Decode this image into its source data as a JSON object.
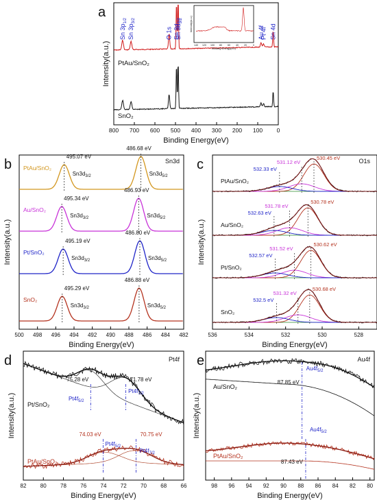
{
  "figure": {
    "colors": {
      "pt": "#1f24c8",
      "au": "#c832d8",
      "ptau": "#d2961e",
      "sno2": "#b4321e",
      "ptau_survey": "#d01818",
      "black": "#111111",
      "oo": "#2a8a2a"
    }
  },
  "chart_data": [
    {
      "panel": "a",
      "type": "line",
      "xlabel": "Binding Energy(eV)",
      "ylabel": "Intensity(a.u.)",
      "xlim": [
        800,
        0
      ],
      "xticks": [
        800,
        700,
        600,
        500,
        400,
        300,
        200,
        100,
        0
      ],
      "series": [
        {
          "name": "PtAu/SnO₂"
        },
        {
          "name": "SnO₂"
        }
      ],
      "peaks": [
        {
          "label": "Sn 3p",
          "sub": "1/2",
          "x": 757
        },
        {
          "label": "Sn 3p",
          "sub": "3/2",
          "x": 716
        },
        {
          "label": "O 1s",
          "sub": "",
          "x": 531
        },
        {
          "label": "Sn 3d",
          "sub": "3/2",
          "x": 495
        },
        {
          "label": "Sn 3d",
          "sub": "5/2",
          "x": 487
        },
        {
          "label": "Au 4f",
          "sub": "",
          "x": 84
        },
        {
          "label": "Pt 4f",
          "sub": "",
          "x": 72
        },
        {
          "label": "Sn 4d",
          "sub": "",
          "x": 25
        }
      ],
      "inset": {
        "xlabel": "Binding Energy(eV)",
        "ylabel": "Intensity(a.u.)",
        "xticks": [
          140,
          120,
          100,
          80,
          60,
          40,
          20,
          0
        ]
      }
    },
    {
      "panel": "b",
      "type": "line",
      "title": "Sn3d",
      "xlabel": "Binding Energy(eV)",
      "ylabel": "Intensity(a.u.)",
      "xlim": [
        500,
        482
      ],
      "xticks": [
        500,
        498,
        496,
        494,
        492,
        490,
        488,
        486,
        484,
        482
      ],
      "series": [
        {
          "name": "PtAu/SnO₂",
          "peaks": [
            495.07,
            486.68
          ],
          "labels": [
            "495.07 eV",
            "486.68 eV"
          ]
        },
        {
          "name": "Au/SnO₂",
          "peaks": [
            495.34,
            486.93
          ],
          "labels": [
            "495.34 eV",
            "486.93 eV"
          ]
        },
        {
          "name": "Pt/SnO₂",
          "peaks": [
            495.19,
            486.8
          ],
          "labels": [
            "495.19 eV",
            "486.80 eV"
          ]
        },
        {
          "name": "SnO₂",
          "peaks": [
            495.29,
            486.88
          ],
          "labels": [
            "495.29 eV",
            "486.88 eV"
          ]
        }
      ],
      "peak_names": [
        "Sn3d",
        "3/2",
        "Sn3d",
        "5/2"
      ]
    },
    {
      "panel": "c",
      "type": "line",
      "title": "O1s",
      "xlabel": "Binding Energy(eV)",
      "ylabel": "Intensity(a.u.)",
      "xlim": [
        536,
        527
      ],
      "xticks": [
        536,
        534,
        532,
        530,
        528
      ],
      "series": [
        {
          "name": "PtAu/SnO₂",
          "peaks": [
            530.45,
            531.12,
            532.33
          ],
          "labels": [
            "530.45 eV",
            "531.12 eV",
            "532.33 eV"
          ]
        },
        {
          "name": "Au/SnO₂",
          "peaks": [
            530.78,
            531.78,
            532.63
          ],
          "labels": [
            "530.78 eV",
            "531.78 eV",
            "532.63 eV"
          ]
        },
        {
          "name": "Pt/SnO₂",
          "peaks": [
            530.62,
            531.52,
            532.57
          ],
          "labels": [
            "530.62 eV",
            "531.52 eV",
            "532.57 eV"
          ]
        },
        {
          "name": "SnO₂",
          "peaks": [
            530.68,
            531.32,
            532.5
          ],
          "labels": [
            "530.68 eV",
            "531.32 eV",
            "532.5 eV"
          ]
        }
      ]
    },
    {
      "panel": "d",
      "type": "line",
      "title": "Pt4f",
      "xlabel": "Binding Energy(eV)",
      "ylabel": "Intensity(a.u.)",
      "xlim": [
        82,
        66
      ],
      "xticks": [
        82,
        80,
        78,
        76,
        74,
        72,
        70,
        68,
        66
      ],
      "series": [
        {
          "name": "Pt/SnO₂",
          "peaks": [
            75.28,
            71.78
          ],
          "labels": [
            "75.28 eV",
            "71.78 eV"
          ]
        },
        {
          "name": "PtAu/SnO₂",
          "peaks": [
            74.03,
            70.75
          ],
          "labels": [
            "74.03 eV",
            "70.75 eV"
          ]
        }
      ],
      "peak_names": [
        "Pt4f",
        "5/2",
        "Pt4f",
        "7/2"
      ]
    },
    {
      "panel": "e",
      "type": "line",
      "title": "Au4f",
      "xlabel": "Binding Energy(eV)",
      "ylabel": "Intensity(a.u.)",
      "xlim": [
        99,
        79.5
      ],
      "xticks": [
        98,
        96,
        94,
        92,
        90,
        88,
        86,
        84,
        82,
        80
      ],
      "series": [
        {
          "name": "Au/SnO₂",
          "peaks": [
            87.85
          ],
          "labels": [
            "87.85 eV"
          ]
        },
        {
          "name": "PtAu/SnO₂",
          "peaks": [
            87.43
          ],
          "labels": [
            "87.43 eV"
          ]
        }
      ],
      "peak_names": [
        "Au4f",
        "5/2"
      ]
    }
  ]
}
